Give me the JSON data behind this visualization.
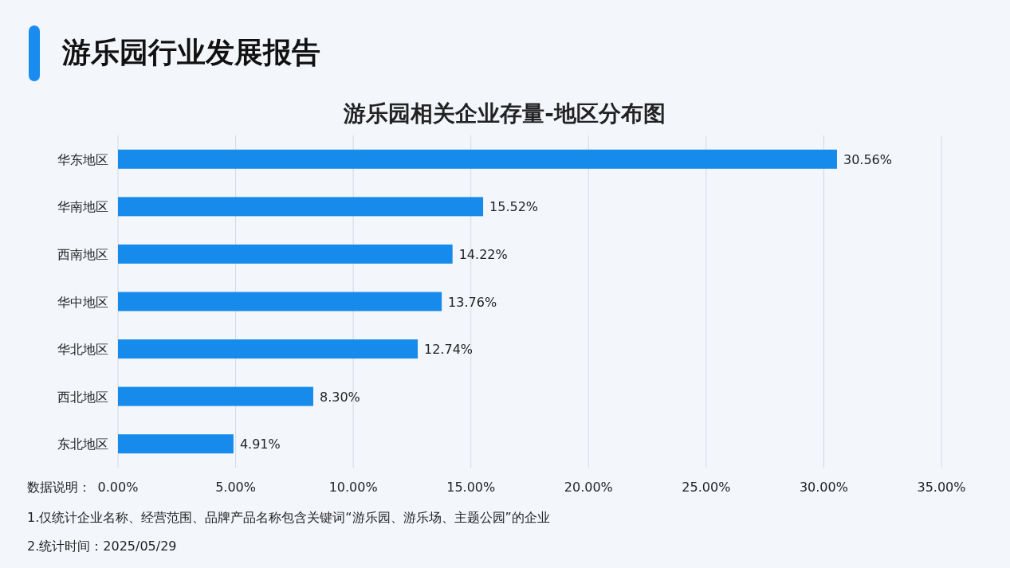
{
  "chart_data": {
    "type": "bar",
    "orientation": "horizontal",
    "title": "游乐园行业发展报告",
    "subtitle": "游乐园相关企业存量-地区分布图",
    "categories": [
      "华东地区",
      "华南地区",
      "西南地区",
      "华中地区",
      "华北地区",
      "西北地区",
      "东北地区"
    ],
    "values": [
      30.56,
      15.52,
      14.22,
      13.76,
      12.74,
      8.3,
      4.91
    ],
    "value_labels": [
      "30.56%",
      "15.52%",
      "14.22%",
      "13.76%",
      "12.74%",
      "8.30%",
      "4.91%"
    ],
    "color": "#168bec",
    "xlim": [
      0,
      35
    ],
    "xticks": [
      {
        "value": 0,
        "label": "0.00%"
      },
      {
        "value": 5,
        "label": "5.00%"
      },
      {
        "value": 10,
        "label": "10.00%"
      },
      {
        "value": 15,
        "label": "15.00%"
      },
      {
        "value": 20,
        "label": "20.00%"
      },
      {
        "value": 25,
        "label": "25.00%"
      },
      {
        "value": 30,
        "label": "30.00%"
      },
      {
        "value": 35,
        "label": "35.00%"
      }
    ],
    "grid": "x",
    "annotations": [
      "数据说明：",
      "1.仅统计企业名称、经营范围、品牌产品名称包含关键词“游乐园、游乐场、主题公园”的企业",
      "2.统计时间：2025/05/29"
    ]
  }
}
